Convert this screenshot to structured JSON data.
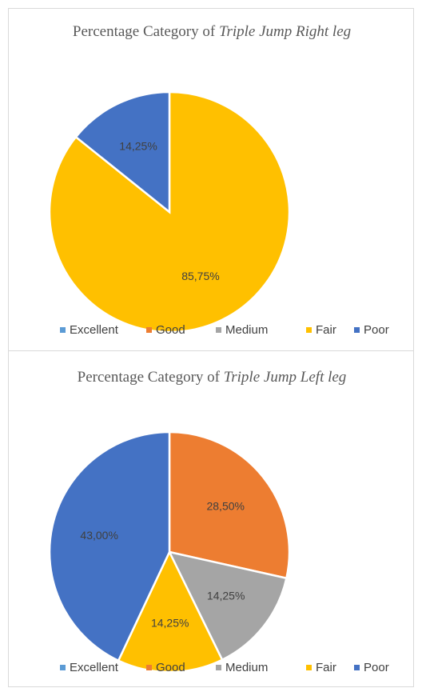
{
  "chart_data": [
    {
      "type": "pie",
      "title": "Percentage Category of",
      "title_italic": "Triple Jump Right leg",
      "categories": [
        "Excellent",
        "Good",
        "Medium",
        "Fair",
        "Poor"
      ],
      "values": [
        0,
        0,
        0,
        85.75,
        14.25
      ],
      "value_labels": [
        null,
        null,
        null,
        "85,75%",
        "14,25%"
      ],
      "colors": [
        "#5b9bd5",
        "#ed7d31",
        "#a5a5a5",
        "#ffc000",
        "#4472c4"
      ],
      "legend": "bottom"
    },
    {
      "type": "pie",
      "title": "Percentage Category of",
      "title_italic": "Triple Jump Left leg",
      "categories": [
        "Excellent",
        "Good",
        "Medium",
        "Fair",
        "Poor"
      ],
      "values": [
        0,
        28.5,
        14.25,
        14.25,
        43
      ],
      "value_labels": [
        null,
        "28,50%",
        "14,25%",
        "14,25%",
        "43,00%"
      ],
      "colors": [
        "#5b9bd5",
        "#ed7d31",
        "#a5a5a5",
        "#ffc000",
        "#4472c4"
      ],
      "legend": "bottom"
    }
  ]
}
